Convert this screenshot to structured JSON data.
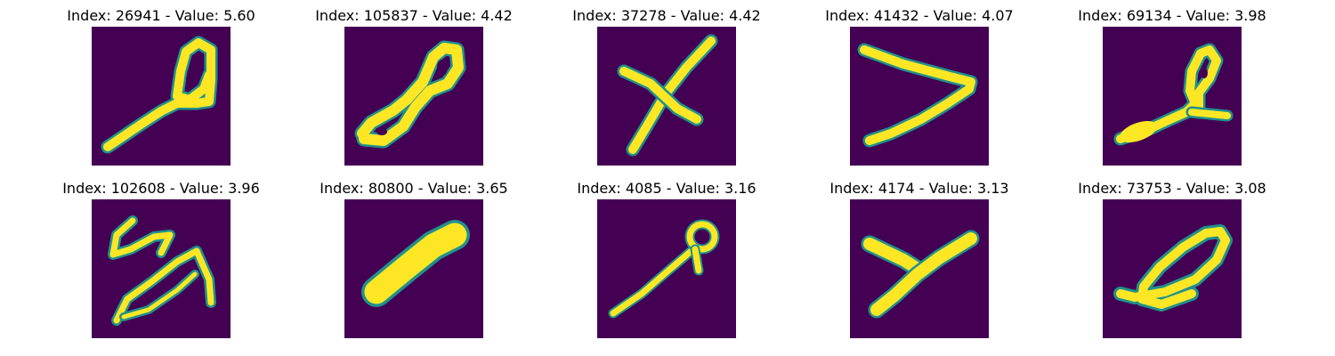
{
  "colors": {
    "background": "#440154",
    "low": "#3b528b",
    "mid": "#21918c",
    "high": "#5ec962",
    "peak": "#fde725"
  },
  "panels": [
    {
      "title": "Index: 26941 - Value: 5.60"
    },
    {
      "title": "Index: 105837 - Value: 4.42"
    },
    {
      "title": "Index: 37278 - Value: 4.42"
    },
    {
      "title": "Index: 41432 - Value: 4.07"
    },
    {
      "title": "Index: 69134 - Value: 3.98"
    },
    {
      "title": "Index: 102608 - Value: 3.96"
    },
    {
      "title": "Index: 80800 - Value: 3.65"
    },
    {
      "title": "Index: 4085 - Value: 3.16"
    },
    {
      "title": "Index: 4174 - Value: 3.13"
    },
    {
      "title": "Index: 73753 - Value: 3.08"
    }
  ]
}
